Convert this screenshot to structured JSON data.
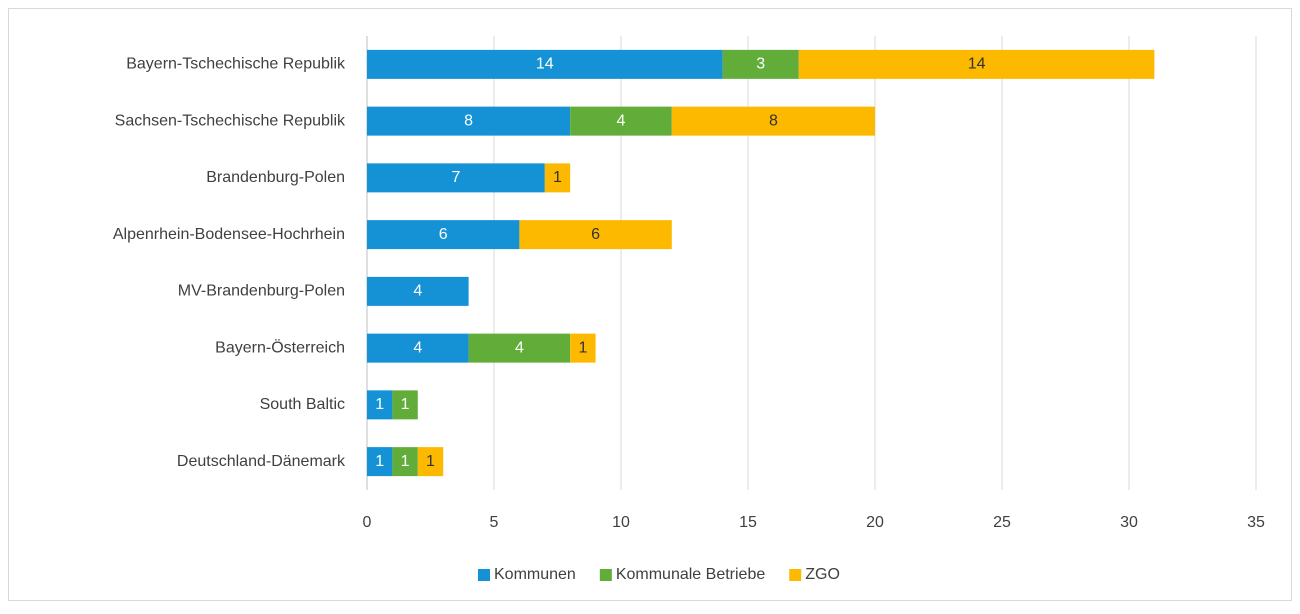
{
  "chart_data": {
    "type": "stacked_barh",
    "categories": [
      "Bayern-Tschechische Republik",
      "Sachsen-Tschechische Republik",
      "Brandenburg-Polen",
      "Alpenrhein-Bodensee-Hochrhein",
      "MV-Brandenburg-Polen",
      "Bayern-Österreich",
      "South Baltic",
      "Deutschland-Dänemark"
    ],
    "series": [
      {
        "name": "Kommunen",
        "color": "#1591d6",
        "label_color": "#ffffff",
        "values": [
          14,
          8,
          7,
          6,
          4,
          4,
          1,
          1
        ]
      },
      {
        "name": "Kommunale Betriebe",
        "color": "#62ad3a",
        "label_color": "#ffffff",
        "values": [
          3,
          4,
          null,
          null,
          null,
          4,
          1,
          1
        ]
      },
      {
        "name": "ZGO",
        "color": "#fcb900",
        "label_color": "#333333",
        "values": [
          14,
          8,
          1,
          6,
          null,
          1,
          null,
          1
        ]
      }
    ],
    "xlim": [
      0,
      35
    ],
    "xticks": [
      0,
      5,
      10,
      15,
      20,
      25,
      30,
      35
    ],
    "grid": true,
    "legend": "bottom"
  }
}
